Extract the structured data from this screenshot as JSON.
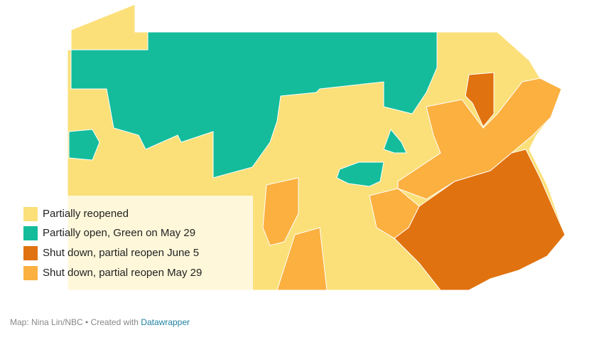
{
  "legend": {
    "items": [
      {
        "label": "Partially reopened",
        "color": "#fbe07a"
      },
      {
        "label": "Partially open, Green on May 29",
        "color": "#14bc9c"
      },
      {
        "label": "Shut down, partial reopen June 5",
        "color": "#e0720f"
      },
      {
        "label": "Shut down, partial reopen May 29",
        "color": "#fbb040"
      }
    ]
  },
  "footer": {
    "credit": "Map: Nina Lin/NBC • Created with",
    "link": "Datawrapper"
  }
}
